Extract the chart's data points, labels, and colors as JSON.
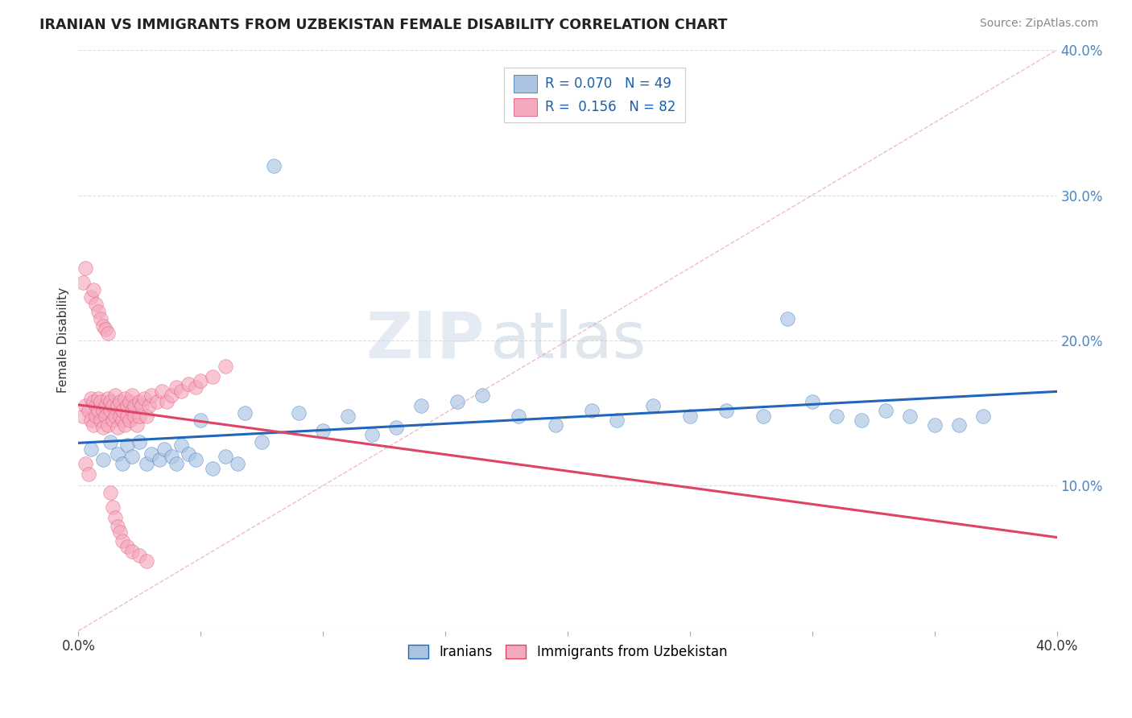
{
  "title": "IRANIAN VS IMMIGRANTS FROM UZBEKISTAN FEMALE DISABILITY CORRELATION CHART",
  "source_text": "Source: ZipAtlas.com",
  "ylabel": "Female Disability",
  "xlim": [
    0.0,
    0.4
  ],
  "ylim": [
    0.0,
    0.4
  ],
  "legend_r1": "0.070",
  "legend_n1": "49",
  "legend_r2": "0.156",
  "legend_n2": "82",
  "series1_color": "#aac4e2",
  "series2_color": "#f5a8be",
  "line1_color": "#2266bb",
  "line2_color": "#dd4466",
  "watermark_zip": "ZIP",
  "watermark_atlas": "atlas",
  "iranians_x": [
    0.005,
    0.01,
    0.013,
    0.016,
    0.018,
    0.02,
    0.022,
    0.025,
    0.028,
    0.03,
    0.033,
    0.035,
    0.038,
    0.04,
    0.042,
    0.045,
    0.048,
    0.05,
    0.055,
    0.06,
    0.065,
    0.068,
    0.075,
    0.08,
    0.09,
    0.1,
    0.11,
    0.12,
    0.13,
    0.14,
    0.155,
    0.165,
    0.18,
    0.195,
    0.21,
    0.22,
    0.235,
    0.25,
    0.265,
    0.28,
    0.29,
    0.3,
    0.31,
    0.32,
    0.33,
    0.34,
    0.35,
    0.36,
    0.37
  ],
  "iranians_y": [
    0.125,
    0.118,
    0.13,
    0.122,
    0.115,
    0.128,
    0.12,
    0.13,
    0.115,
    0.122,
    0.118,
    0.125,
    0.12,
    0.115,
    0.128,
    0.122,
    0.118,
    0.145,
    0.112,
    0.12,
    0.115,
    0.15,
    0.13,
    0.32,
    0.15,
    0.138,
    0.148,
    0.135,
    0.14,
    0.155,
    0.158,
    0.162,
    0.148,
    0.142,
    0.152,
    0.145,
    0.155,
    0.148,
    0.152,
    0.148,
    0.215,
    0.158,
    0.148,
    0.145,
    0.152,
    0.148,
    0.142,
    0.142,
    0.148
  ],
  "uzbek_x": [
    0.002,
    0.003,
    0.004,
    0.005,
    0.005,
    0.006,
    0.006,
    0.007,
    0.007,
    0.008,
    0.008,
    0.009,
    0.009,
    0.01,
    0.01,
    0.011,
    0.011,
    0.012,
    0.012,
    0.013,
    0.013,
    0.014,
    0.014,
    0.015,
    0.015,
    0.016,
    0.016,
    0.017,
    0.017,
    0.018,
    0.018,
    0.019,
    0.019,
    0.02,
    0.02,
    0.021,
    0.021,
    0.022,
    0.022,
    0.023,
    0.023,
    0.024,
    0.025,
    0.025,
    0.026,
    0.027,
    0.028,
    0.029,
    0.03,
    0.032,
    0.034,
    0.036,
    0.038,
    0.04,
    0.042,
    0.045,
    0.048,
    0.05,
    0.055,
    0.06,
    0.002,
    0.003,
    0.005,
    0.006,
    0.007,
    0.008,
    0.009,
    0.01,
    0.011,
    0.012,
    0.013,
    0.014,
    0.015,
    0.016,
    0.017,
    0.018,
    0.02,
    0.022,
    0.025,
    0.028,
    0.003,
    0.004
  ],
  "uzbek_y": [
    0.148,
    0.155,
    0.152,
    0.16,
    0.145,
    0.158,
    0.142,
    0.155,
    0.148,
    0.152,
    0.16,
    0.145,
    0.158,
    0.152,
    0.14,
    0.155,
    0.148,
    0.16,
    0.142,
    0.152,
    0.158,
    0.145,
    0.155,
    0.148,
    0.162,
    0.14,
    0.155,
    0.148,
    0.158,
    0.145,
    0.152,
    0.16,
    0.142,
    0.155,
    0.148,
    0.158,
    0.145,
    0.152,
    0.162,
    0.148,
    0.155,
    0.142,
    0.158,
    0.148,
    0.155,
    0.16,
    0.148,
    0.155,
    0.162,
    0.158,
    0.165,
    0.158,
    0.162,
    0.168,
    0.165,
    0.17,
    0.168,
    0.172,
    0.175,
    0.182,
    0.24,
    0.25,
    0.23,
    0.235,
    0.225,
    0.22,
    0.215,
    0.21,
    0.208,
    0.205,
    0.095,
    0.085,
    0.078,
    0.072,
    0.068,
    0.062,
    0.058,
    0.055,
    0.052,
    0.048,
    0.115,
    0.108
  ]
}
